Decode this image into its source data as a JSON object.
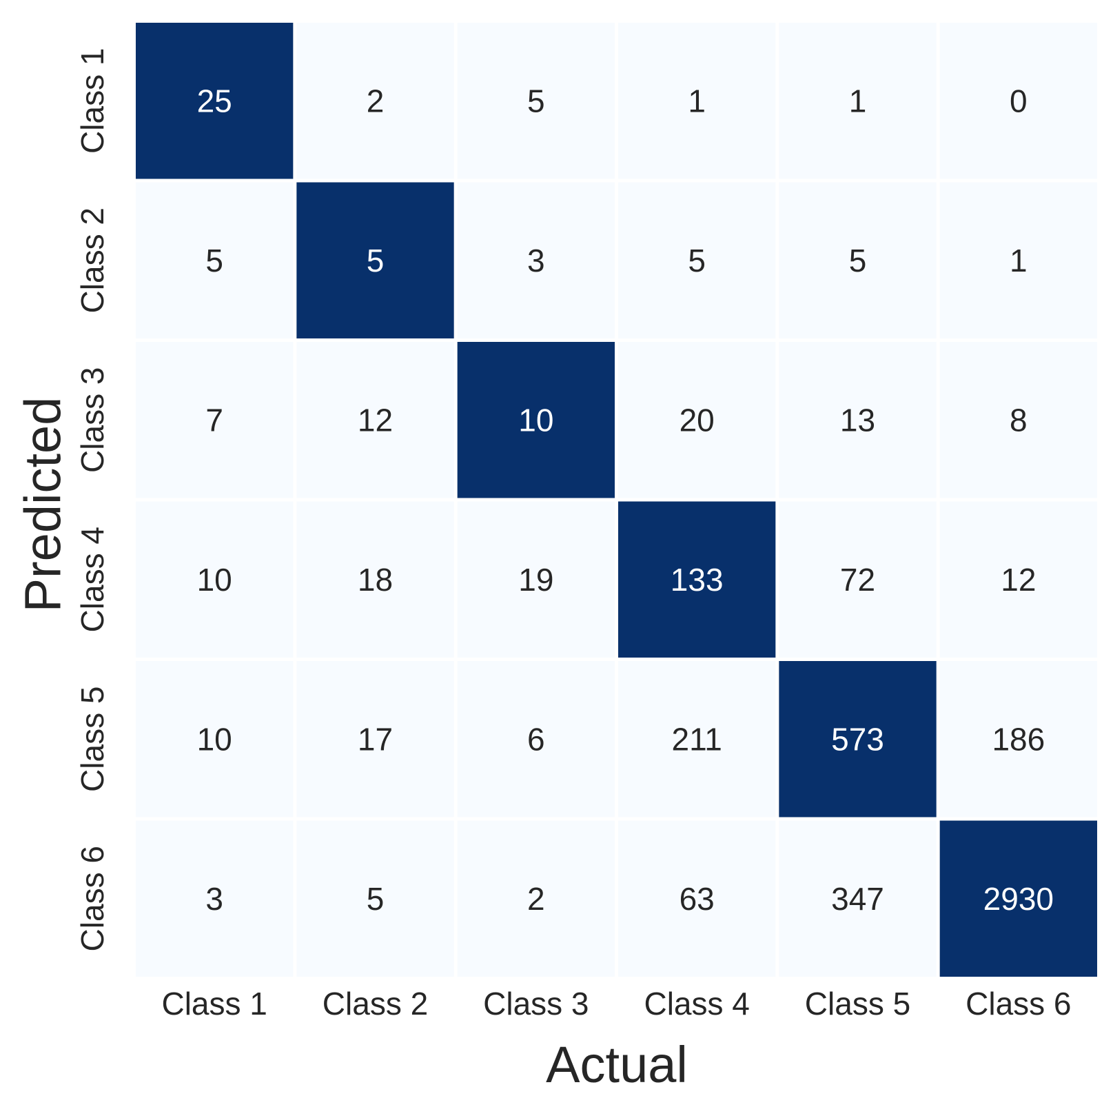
{
  "chart_data": {
    "type": "heatmap",
    "xlabel": "Actual",
    "ylabel": "Predicted",
    "x_categories": [
      "Class 1",
      "Class 2",
      "Class 3",
      "Class 4",
      "Class 5",
      "Class 6"
    ],
    "y_categories": [
      "Class 1",
      "Class 2",
      "Class 3",
      "Class 4",
      "Class 5",
      "Class 6"
    ],
    "values": [
      [
        25,
        2,
        5,
        1,
        1,
        0
      ],
      [
        5,
        5,
        3,
        5,
        5,
        1
      ],
      [
        7,
        12,
        10,
        20,
        13,
        8
      ],
      [
        10,
        18,
        19,
        133,
        72,
        12
      ],
      [
        10,
        17,
        6,
        211,
        573,
        186
      ],
      [
        3,
        5,
        2,
        63,
        347,
        2930
      ]
    ],
    "highlight": "diagonal",
    "colorbar": false,
    "colors": {
      "highlight": "#08306b",
      "base": "#f7fbff",
      "text_on_highlight": "#ffffff",
      "text_on_base": "#262626",
      "cell_border": "#ffffff"
    }
  }
}
